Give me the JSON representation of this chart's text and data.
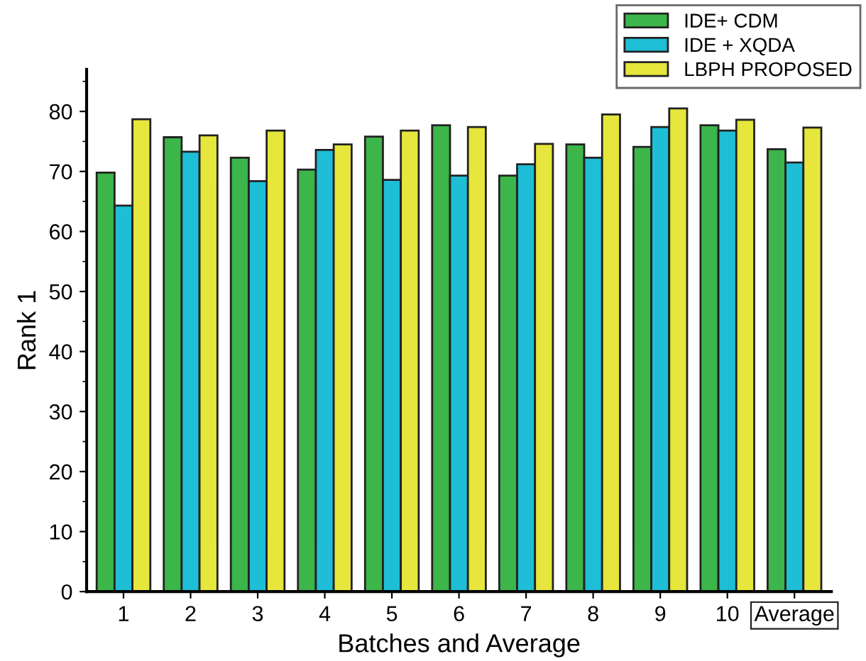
{
  "chart_data": {
    "type": "bar",
    "xlabel": "Batches and Average",
    "ylabel": "Rank 1",
    "categories": [
      "1",
      "2",
      "3",
      "4",
      "5",
      "6",
      "7",
      "8",
      "9",
      "10",
      "Average"
    ],
    "series": [
      {
        "name": "IDE+ CDM",
        "color": "#3cb54a",
        "values": [
          69.8,
          75.7,
          72.3,
          70.3,
          75.8,
          77.7,
          69.3,
          74.5,
          74.1,
          77.7,
          73.7
        ]
      },
      {
        "name": "IDE + XQDA",
        "color": "#1ebed6",
        "values": [
          64.3,
          73.3,
          68.4,
          73.6,
          68.6,
          69.3,
          71.2,
          72.3,
          77.4,
          76.8,
          71.5
        ]
      },
      {
        "name": "LBPH PROPOSED",
        "color": "#e6e63c",
        "values": [
          78.7,
          76.0,
          76.8,
          74.5,
          76.8,
          77.4,
          74.6,
          79.5,
          80.5,
          78.6,
          77.3
        ]
      }
    ],
    "ylim": [
      0,
      87
    ],
    "yticks": [
      0,
      10,
      20,
      30,
      40,
      50,
      60,
      70,
      80
    ],
    "grid": false,
    "legend": "top right"
  }
}
